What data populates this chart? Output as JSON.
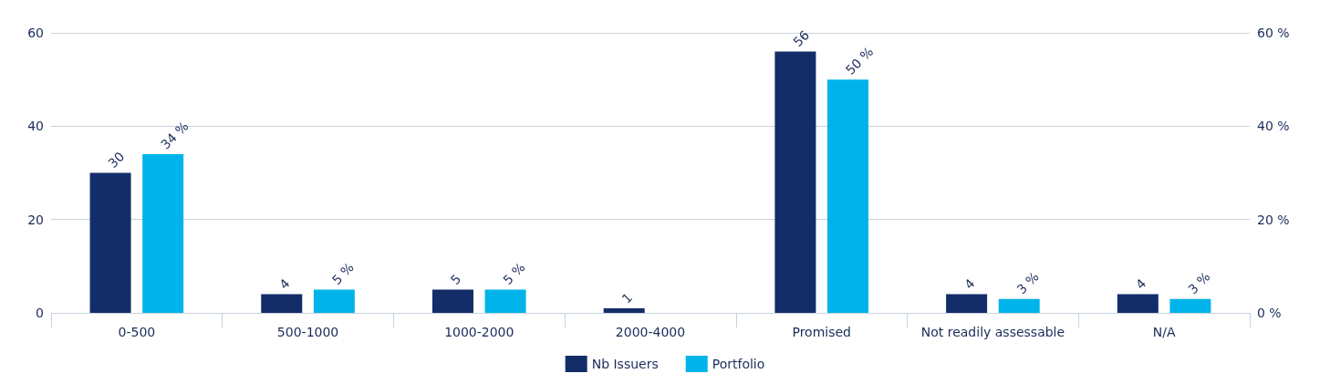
{
  "chart_data": {
    "type": "bar",
    "categories": [
      "0-500",
      "500-1000",
      "1000-2000",
      "2000-4000",
      "Promised",
      "Not readily assessable",
      "N/A"
    ],
    "series": [
      {
        "name": "Nb Issuers",
        "color": "#132d69",
        "values": [
          30,
          4,
          5,
          1,
          56,
          4,
          4
        ],
        "value_labels": [
          "30",
          "4",
          "5",
          "1",
          "56",
          "4",
          "4"
        ]
      },
      {
        "name": "Portfolio",
        "color": "#00b4eb",
        "axis": "y2",
        "values": [
          34,
          5,
          5,
          null,
          50,
          3,
          3
        ],
        "value_labels": [
          "34 %",
          "5 %",
          "5 %",
          null,
          "50 %",
          "3 %",
          "3 %"
        ]
      }
    ],
    "ylim": [
      0,
      60
    ],
    "yticks": [
      0,
      20,
      40,
      60
    ],
    "y2lim": [
      0,
      60
    ],
    "y2ticks": [
      {
        "value": 0,
        "label": "0 %"
      },
      {
        "value": 20,
        "label": "20 %"
      },
      {
        "value": 40,
        "label": "40 %"
      },
      {
        "value": 60,
        "label": "60 %"
      }
    ],
    "grid": "y",
    "legend": "bottom"
  }
}
